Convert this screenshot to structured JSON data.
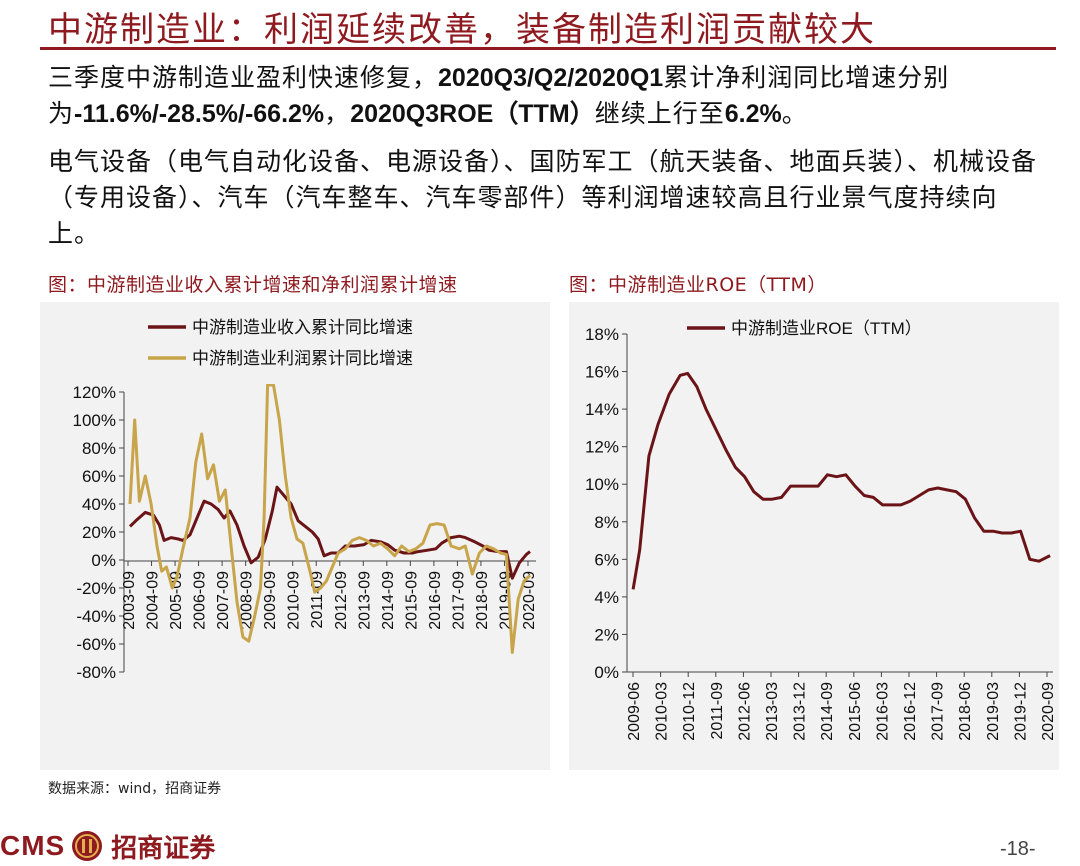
{
  "title": "中游制造业：利润延续改善，装备制造利润贡献较大",
  "para1": {
    "t1": "三季度中游制造业盈利快速修复，",
    "b1": "2020Q3/Q2/2020Q1",
    "t2": "累计净利润同比增速分别为",
    "b2": "-11.6%/-28.5%/-66.2%",
    "t3": "，",
    "b3": "2020Q3ROE（TTM）",
    "t4": "继续上行至",
    "b4": "6.2%",
    "t5": "。"
  },
  "para2": "电气设备（电气自动化设备、电源设备）、国防军工（航天装备、地面兵装）、机械设备（专用设备）、汽车（汽车整车、汽车零部件）等利润增速较高且行业景气度持续向上。",
  "chart1_title": "图：中游制造业收入累计增速和净利润累计增速",
  "chart2_title": "图：中游制造业ROE（TTM）",
  "source": "数据来源：wind，招商证券",
  "logo": {
    "cms": "CMS",
    "name": "招商证券"
  },
  "page_number": "-18-",
  "colors": {
    "dark_red": "#6b1418",
    "gold": "#c8a44a",
    "brand": "#8e1a1f"
  },
  "chart_data": [
    {
      "type": "line",
      "ylim": [
        -80,
        120
      ],
      "yticks": [
        "120%",
        "100%",
        "80%",
        "60%",
        "40%",
        "20%",
        "0%",
        "-20%",
        "-40%",
        "-60%",
        "-80%"
      ],
      "xticks": [
        "2003-09",
        "2004-09",
        "2005-09",
        "2006-09",
        "2007-09",
        "2008-09",
        "2009-09",
        "2010-09",
        "2011-09",
        "2012-09",
        "2013-09",
        "2014-09",
        "2015-09",
        "2016-09",
        "2017-09",
        "2018-09",
        "2019-09",
        "2020-09"
      ],
      "legend": "top-left",
      "series": [
        {
          "name": "中游制造业收入累计同比增速",
          "color": "#6b1418",
          "points": [
            [
              2003.75,
              24
            ],
            [
              2004.0,
              28
            ],
            [
              2004.4,
              34
            ],
            [
              2004.75,
              32
            ],
            [
              2005.0,
              25
            ],
            [
              2005.2,
              14
            ],
            [
              2005.5,
              16
            ],
            [
              2005.8,
              15
            ],
            [
              2006.0,
              14
            ],
            [
              2006.3,
              18
            ],
            [
              2006.6,
              30
            ],
            [
              2006.9,
              42
            ],
            [
              2007.2,
              40
            ],
            [
              2007.5,
              36
            ],
            [
              2007.75,
              30
            ],
            [
              2008.0,
              35
            ],
            [
              2008.3,
              25
            ],
            [
              2008.6,
              10
            ],
            [
              2008.9,
              -2
            ],
            [
              2009.2,
              2
            ],
            [
              2009.5,
              15
            ],
            [
              2009.8,
              35
            ],
            [
              2010.0,
              52
            ],
            [
              2010.3,
              46
            ],
            [
              2010.6,
              40
            ],
            [
              2010.9,
              28
            ],
            [
              2011.2,
              24
            ],
            [
              2011.5,
              20
            ],
            [
              2011.75,
              15
            ],
            [
              2012.0,
              3
            ],
            [
              2012.3,
              5
            ],
            [
              2012.6,
              5
            ],
            [
              2012.9,
              10
            ],
            [
              2013.3,
              10
            ],
            [
              2013.7,
              11
            ],
            [
              2014.0,
              14
            ],
            [
              2014.4,
              13
            ],
            [
              2014.7,
              11
            ],
            [
              2015.0,
              7
            ],
            [
              2015.4,
              5
            ],
            [
              2015.75,
              5
            ],
            [
              2016.0,
              6
            ],
            [
              2016.4,
              7
            ],
            [
              2016.75,
              8
            ],
            [
              2017.0,
              12
            ],
            [
              2017.4,
              16
            ],
            [
              2017.75,
              17
            ],
            [
              2018.0,
              16
            ],
            [
              2018.4,
              13
            ],
            [
              2018.75,
              10
            ],
            [
              2019.0,
              7
            ],
            [
              2019.4,
              6
            ],
            [
              2019.75,
              6
            ],
            [
              2020.0,
              -13
            ],
            [
              2020.3,
              -2
            ],
            [
              2020.6,
              4
            ],
            [
              2020.75,
              6
            ]
          ]
        },
        {
          "name": "中游制造业利润累计同比增速",
          "color": "#c8a44a",
          "points": [
            [
              2003.75,
              40
            ],
            [
              2003.95,
              100
            ],
            [
              2004.15,
              42
            ],
            [
              2004.4,
              60
            ],
            [
              2004.65,
              40
            ],
            [
              2004.9,
              10
            ],
            [
              2005.1,
              -8
            ],
            [
              2005.3,
              -5
            ],
            [
              2005.55,
              -20
            ],
            [
              2005.75,
              -12
            ],
            [
              2006.0,
              8
            ],
            [
              2006.3,
              30
            ],
            [
              2006.55,
              70
            ],
            [
              2006.8,
              90
            ],
            [
              2007.05,
              58
            ],
            [
              2007.3,
              68
            ],
            [
              2007.55,
              42
            ],
            [
              2007.8,
              50
            ],
            [
              2008.05,
              10
            ],
            [
              2008.3,
              -30
            ],
            [
              2008.55,
              -55
            ],
            [
              2008.8,
              -58
            ],
            [
              2009.05,
              -40
            ],
            [
              2009.3,
              -20
            ],
            [
              2009.45,
              30
            ],
            [
              2009.6,
              125
            ],
            [
              2009.85,
              125
            ],
            [
              2010.1,
              100
            ],
            [
              2010.35,
              60
            ],
            [
              2010.6,
              30
            ],
            [
              2010.85,
              15
            ],
            [
              2011.1,
              12
            ],
            [
              2011.4,
              -8
            ],
            [
              2011.6,
              -23
            ],
            [
              2011.85,
              -20
            ],
            [
              2012.1,
              -15
            ],
            [
              2012.35,
              -5
            ],
            [
              2012.6,
              5
            ],
            [
              2012.9,
              8
            ],
            [
              2013.2,
              14
            ],
            [
              2013.5,
              16
            ],
            [
              2013.8,
              14
            ],
            [
              2014.1,
              10
            ],
            [
              2014.4,
              12
            ],
            [
              2014.7,
              8
            ],
            [
              2015.0,
              3
            ],
            [
              2015.3,
              10
            ],
            [
              2015.6,
              6
            ],
            [
              2015.9,
              8
            ],
            [
              2016.2,
              12
            ],
            [
              2016.5,
              25
            ],
            [
              2016.8,
              26
            ],
            [
              2017.1,
              25
            ],
            [
              2017.4,
              10
            ],
            [
              2017.75,
              8
            ],
            [
              2018.0,
              10
            ],
            [
              2018.3,
              -10
            ],
            [
              2018.6,
              5
            ],
            [
              2018.9,
              10
            ],
            [
              2019.2,
              8
            ],
            [
              2019.5,
              5
            ],
            [
              2019.75,
              4
            ],
            [
              2020.0,
              -66
            ],
            [
              2020.25,
              -28
            ],
            [
              2020.5,
              -15
            ],
            [
              2020.75,
              -11
            ]
          ]
        }
      ]
    },
    {
      "type": "line",
      "ylim": [
        0,
        18
      ],
      "yticks": [
        "18%",
        "16%",
        "14%",
        "12%",
        "10%",
        "8%",
        "6%",
        "4%",
        "2%",
        "0%"
      ],
      "xticks": [
        "2009-06",
        "2010-03",
        "2010-12",
        "2011-09",
        "2012-06",
        "2013-03",
        "2013-12",
        "2014-09",
        "2015-06",
        "2016-03",
        "2016-12",
        "2017-09",
        "2018-06",
        "2019-03",
        "2019-12",
        "2020-09"
      ],
      "legend": "top-center",
      "series": [
        {
          "name": "中游制造业ROE（TTM）",
          "color": "#6b1418",
          "points": [
            [
              2009.42,
              4.4
            ],
            [
              2009.6,
              6.5
            ],
            [
              2009.85,
              11.5
            ],
            [
              2010.1,
              13.2
            ],
            [
              2010.4,
              14.8
            ],
            [
              2010.7,
              15.8
            ],
            [
              2010.9,
              15.9
            ],
            [
              2011.15,
              15.2
            ],
            [
              2011.4,
              14.0
            ],
            [
              2011.7,
              12.8
            ],
            [
              2011.95,
              11.8
            ],
            [
              2012.2,
              10.9
            ],
            [
              2012.45,
              10.4
            ],
            [
              2012.7,
              9.6
            ],
            [
              2012.95,
              9.2
            ],
            [
              2013.2,
              9.2
            ],
            [
              2013.45,
              9.3
            ],
            [
              2013.7,
              9.9
            ],
            [
              2013.95,
              9.9
            ],
            [
              2014.2,
              9.9
            ],
            [
              2014.45,
              9.9
            ],
            [
              2014.7,
              10.5
            ],
            [
              2014.95,
              10.4
            ],
            [
              2015.2,
              10.5
            ],
            [
              2015.45,
              9.9
            ],
            [
              2015.7,
              9.4
            ],
            [
              2015.95,
              9.3
            ],
            [
              2016.2,
              8.9
            ],
            [
              2016.45,
              8.9
            ],
            [
              2016.7,
              8.9
            ],
            [
              2016.95,
              9.1
            ],
            [
              2017.2,
              9.4
            ],
            [
              2017.45,
              9.7
            ],
            [
              2017.7,
              9.8
            ],
            [
              2017.95,
              9.7
            ],
            [
              2018.2,
              9.6
            ],
            [
              2018.45,
              9.2
            ],
            [
              2018.7,
              8.2
            ],
            [
              2018.95,
              7.5
            ],
            [
              2019.2,
              7.5
            ],
            [
              2019.45,
              7.4
            ],
            [
              2019.7,
              7.4
            ],
            [
              2019.95,
              7.5
            ],
            [
              2020.2,
              6.0
            ],
            [
              2020.45,
              5.9
            ],
            [
              2020.75,
              6.2
            ]
          ]
        }
      ]
    }
  ]
}
